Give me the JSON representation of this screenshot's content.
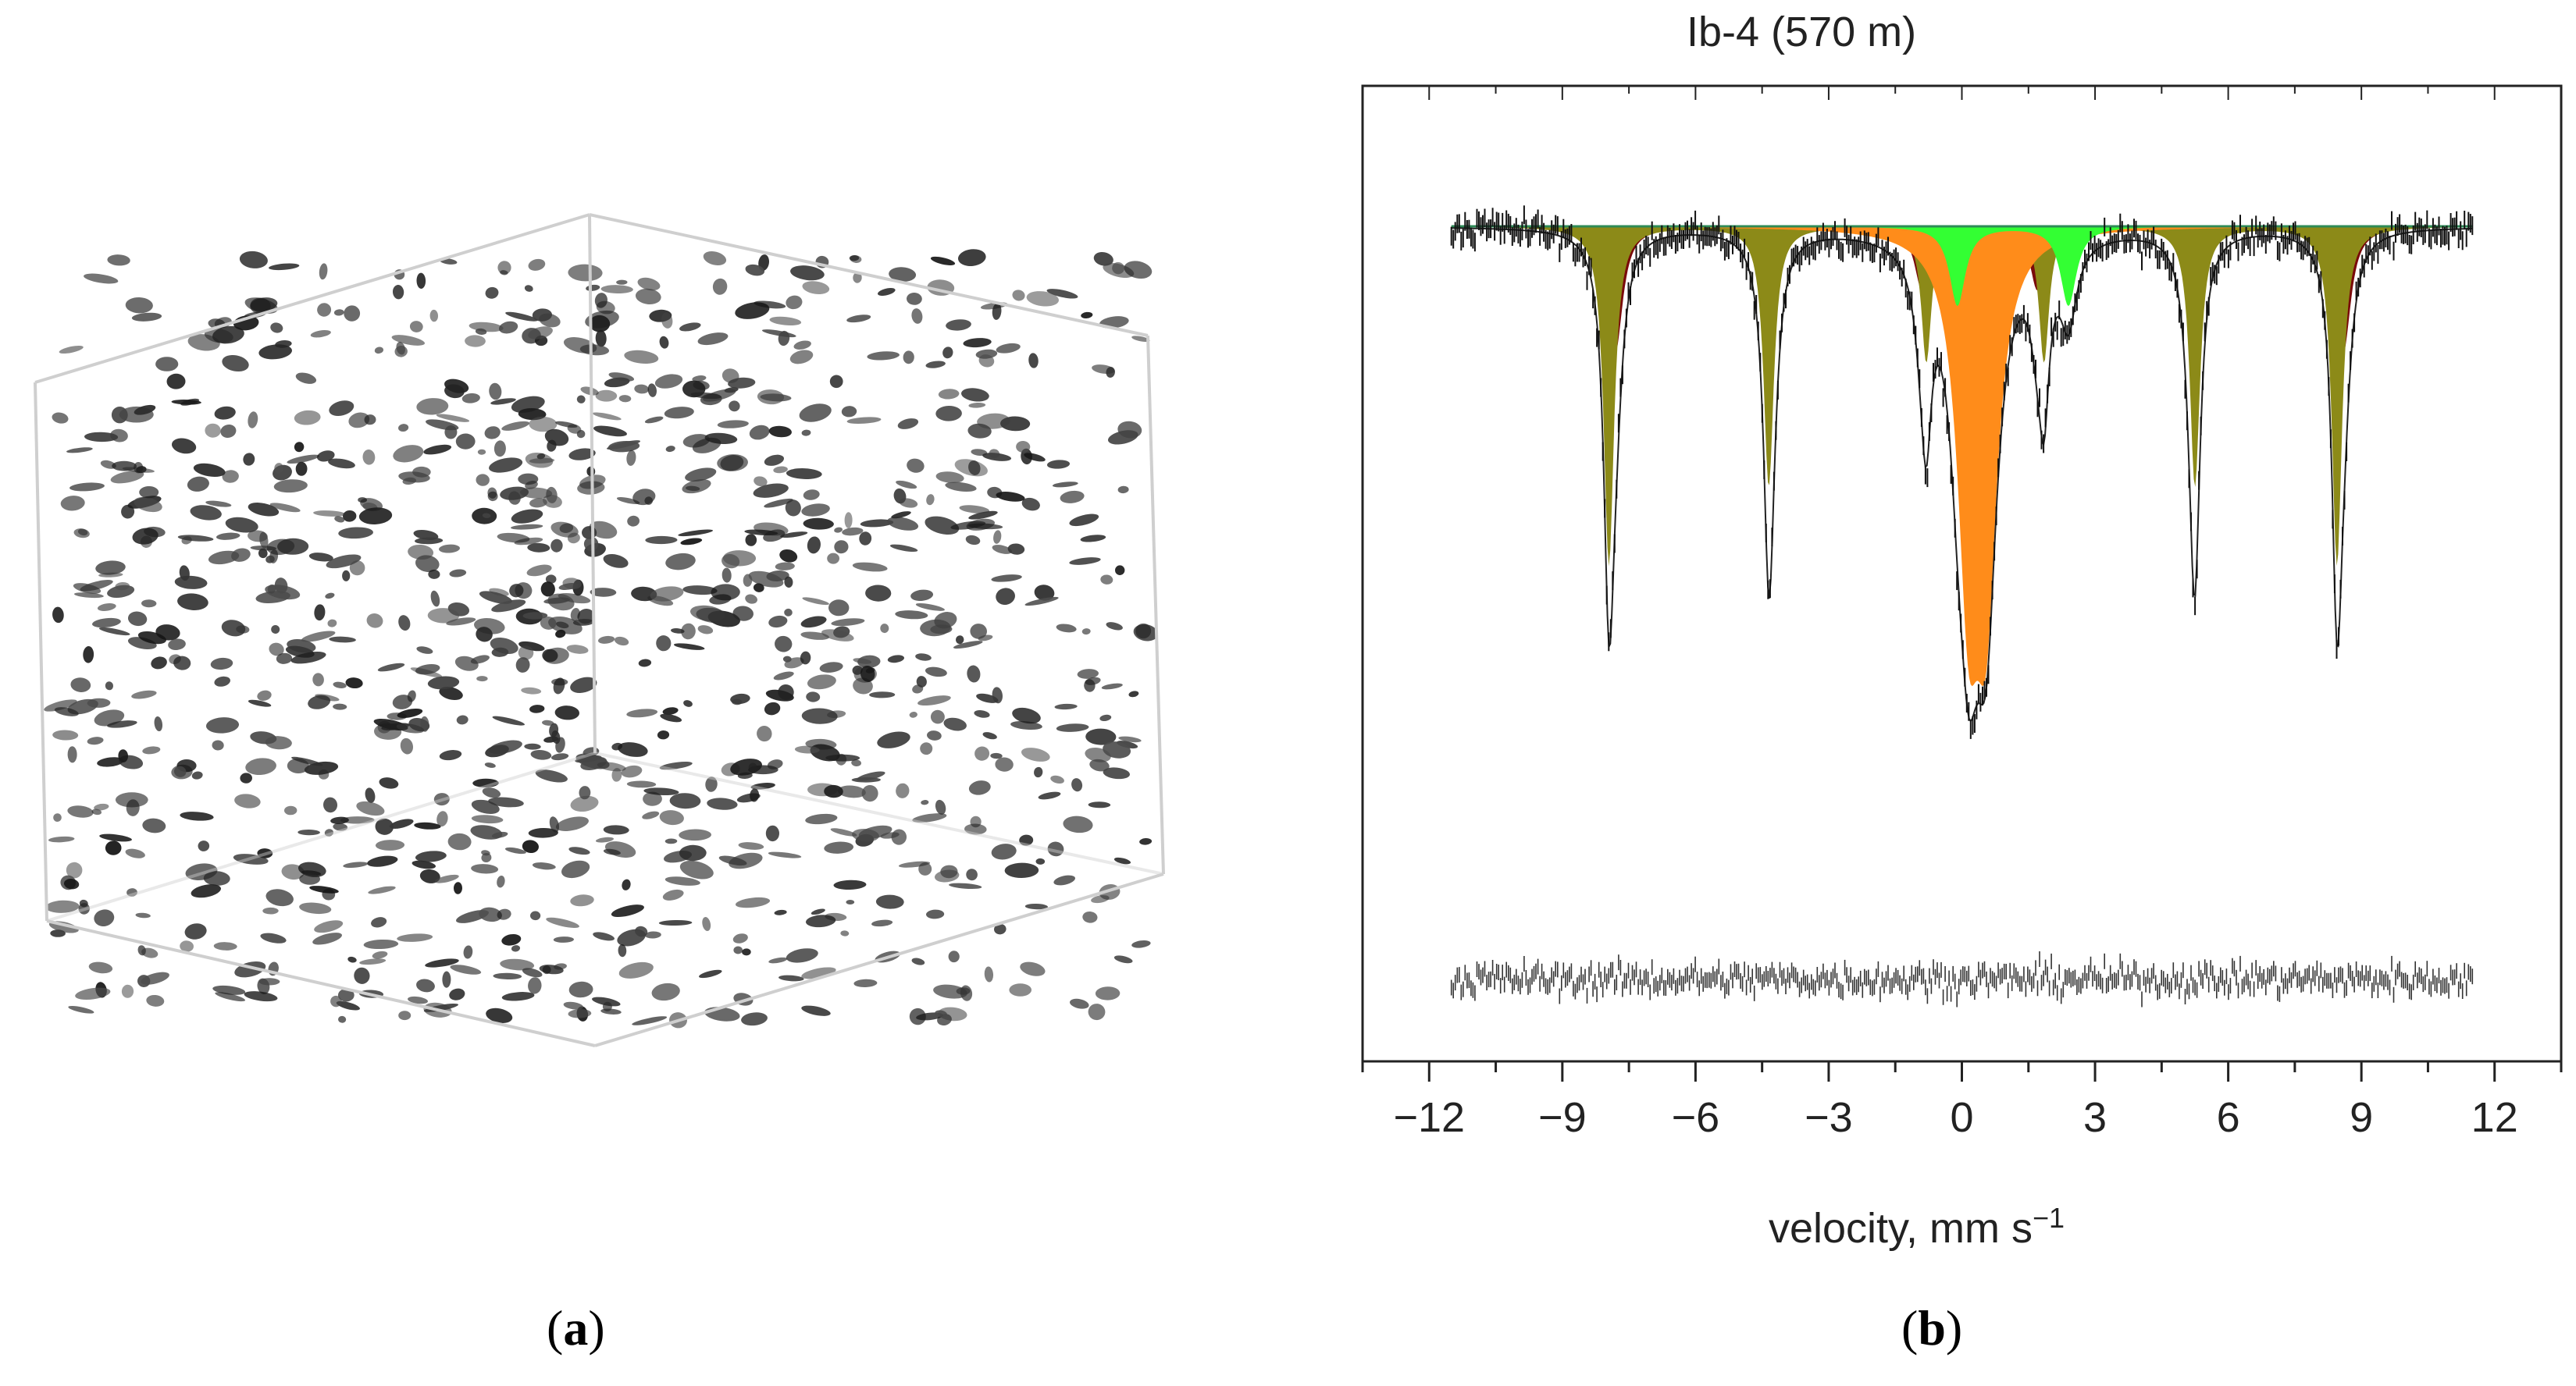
{
  "panel_a": {
    "label_open": "(",
    "label_letter": "a",
    "label_close": ")"
  },
  "panel_b": {
    "label_open": "(",
    "label_letter": "b",
    "label_close": ")"
  },
  "colors": {
    "sextet_1": "#7a0a0a",
    "sextet_2": "#8c8a18",
    "doublet_1": "#ff8c1a",
    "doublet_2": "#33ff33",
    "baseline": "#2e8b57",
    "data": "#111111",
    "envelope": "#222222"
  },
  "chart_data": {
    "type": "line",
    "title": "Ib-4 (570 m)",
    "xlabel": "velocity, mm s",
    "xlabel_sup": "−1",
    "ylabel": "",
    "xlim": [
      -13.5,
      13.5
    ],
    "x_ticks": [
      -12,
      -9,
      -6,
      -3,
      0,
      3,
      6,
      9,
      12
    ],
    "x_tick_labels": [
      "−12",
      "−9",
      "−6",
      "−3",
      "0",
      "3",
      "6",
      "9",
      "12"
    ],
    "x_minor_step": 1.5,
    "data_range": [
      -11.5,
      11.5
    ],
    "baseline": 1.0,
    "components": [
      {
        "kind": "sextet",
        "lines": [
          -7.8,
          -4.3,
          -0.9,
          1.7,
          5.2,
          8.6
        ],
        "depths": [
          0.055,
          0.05,
          0.028,
          0.028,
          0.05,
          0.055
        ],
        "hwhm": 0.2
      },
      {
        "kind": "sextet",
        "lines": [
          -7.95,
          -4.35,
          -0.8,
          1.85,
          5.25,
          8.45
        ],
        "depths": [
          0.15,
          0.115,
          0.06,
          0.06,
          0.115,
          0.15
        ],
        "hwhm": 0.14
      },
      {
        "kind": "doublet",
        "lines": [
          0.15,
          0.55
        ],
        "depths": [
          0.145,
          0.145
        ],
        "hwhm": 0.3
      },
      {
        "kind": "doublet",
        "lines": [
          -0.1,
          2.4
        ],
        "depths": [
          0.035,
          0.035
        ],
        "hwhm": 0.22
      }
    ]
  }
}
